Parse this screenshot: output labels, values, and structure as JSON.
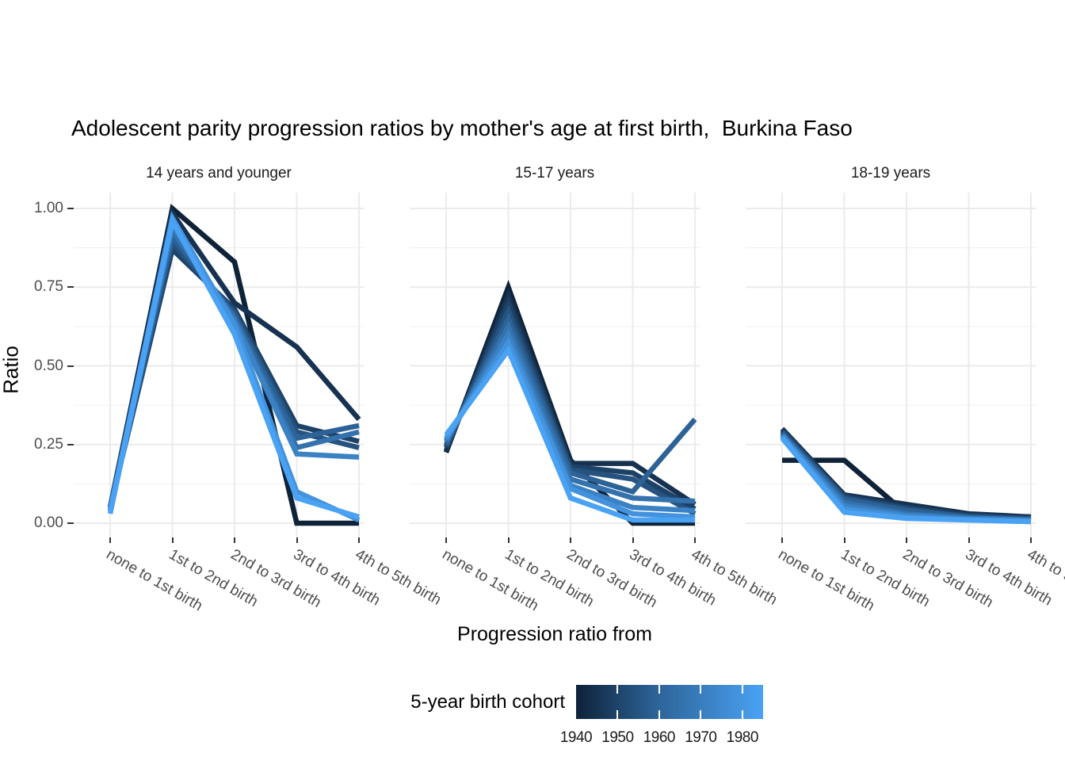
{
  "title": "Adolescent parity progression ratios by mother's age at first birth,  Burkina Faso",
  "y_axis": {
    "label": "Ratio",
    "tick_labels": [
      "1.00",
      "0.75",
      "0.50",
      "0.25",
      "0.00"
    ],
    "tick_values": [
      1.0,
      0.75,
      0.5,
      0.25,
      0.0
    ],
    "minor_values": [
      0.875,
      0.625,
      0.375,
      0.125
    ]
  },
  "x_axis": {
    "label": "Progression ratio from",
    "categories": [
      "none to 1st birth",
      "1st to 2nd birth",
      "2nd to 3rd birth",
      "3rd to 4th birth",
      "4th to 5th birth"
    ]
  },
  "legend": {
    "title": "5-year birth cohort",
    "tick_labels": [
      "1940",
      "1950",
      "1960",
      "1970",
      "1980"
    ],
    "tick_years": [
      1940,
      1950,
      1960,
      1970,
      1980
    ],
    "year_min": 1940,
    "year_max": 1985,
    "gradient_start": "#0E2238",
    "gradient_mid": "#2C6296",
    "gradient_end": "#4AA2F4"
  },
  "chart_data": {
    "type": "line",
    "title": "Adolescent parity progression ratios by mother's age at first birth,  Burkina Faso",
    "xlabel": "Progression ratio from",
    "ylabel": "Ratio",
    "ylim": [
      0,
      1
    ],
    "grid": "on",
    "legend_position": "bottom",
    "categories": [
      "none to 1st birth",
      "1st to 2nd birth",
      "2nd to 3rd birth",
      "3rd to 4th birth",
      "4th to 5th birth"
    ],
    "cohorts": [
      "1940",
      "1945",
      "1950",
      "1955",
      "1960",
      "1965",
      "1970",
      "1975",
      "1980"
    ],
    "colors": [
      "#0E2238",
      "#163250",
      "#1D4267",
      "#25527F",
      "#2C6296",
      "#3472AE",
      "#3B82C5",
      "#4392DD",
      "#4AA2F4"
    ],
    "facets": [
      {
        "label": "14 years and younger",
        "series": [
          {
            "name": "1940",
            "color": "#0E2238",
            "values": [
              0.05,
              1.0,
              0.83,
              0.0,
              0.0
            ]
          },
          {
            "name": "1945",
            "color": "#163250",
            "values": [
              0.05,
              0.985,
              0.7,
              0.56,
              0.33
            ]
          },
          {
            "name": "1950",
            "color": "#1D4267",
            "values": [
              0.05,
              0.87,
              0.68,
              0.31,
              0.26
            ]
          },
          {
            "name": "1955",
            "color": "#25527F",
            "values": [
              0.05,
              0.89,
              0.67,
              0.29,
              0.24
            ]
          },
          {
            "name": "1960",
            "color": "#2C6296",
            "values": [
              0.05,
              0.91,
              0.66,
              0.27,
              0.31
            ]
          },
          {
            "name": "1965",
            "color": "#3472AE",
            "values": [
              0.04,
              0.93,
              0.65,
              0.24,
              0.29
            ]
          },
          {
            "name": "1970",
            "color": "#3B82C5",
            "values": [
              0.04,
              0.95,
              0.64,
              0.22,
              0.21
            ]
          },
          {
            "name": "1975",
            "color": "#4392DD",
            "values": [
              0.04,
              0.97,
              0.63,
              0.1,
              0.01
            ]
          },
          {
            "name": "1980",
            "color": "#4AA2F4",
            "values": [
              0.03,
              0.96,
              0.6,
              0.08,
              0.02
            ]
          }
        ]
      },
      {
        "label": "15-17 years",
        "series": [
          {
            "name": "1940",
            "color": "#0E2238",
            "values": [
              0.225,
              0.75,
              0.2,
              0.0,
              0.0
            ]
          },
          {
            "name": "1945",
            "color": "#163250",
            "values": [
              0.23,
              0.725,
              0.19,
              0.19,
              0.06
            ]
          },
          {
            "name": "1950",
            "color": "#1D4267",
            "values": [
              0.24,
              0.7,
              0.18,
              0.16,
              0.045
            ]
          },
          {
            "name": "1955",
            "color": "#25527F",
            "values": [
              0.245,
              0.675,
              0.17,
              0.14,
              0.03
            ]
          },
          {
            "name": "1960",
            "color": "#2C6296",
            "values": [
              0.25,
              0.65,
              0.16,
              0.1,
              0.33
            ]
          },
          {
            "name": "1965",
            "color": "#3472AE",
            "values": [
              0.26,
              0.625,
              0.14,
              0.08,
              0.07
            ]
          },
          {
            "name": "1970",
            "color": "#3B82C5",
            "values": [
              0.265,
              0.6,
              0.12,
              0.05,
              0.04
            ]
          },
          {
            "name": "1975",
            "color": "#4392DD",
            "values": [
              0.27,
              0.575,
              0.11,
              0.03,
              0.02
            ]
          },
          {
            "name": "1980",
            "color": "#4AA2F4",
            "values": [
              0.28,
              0.55,
              0.08,
              0.01,
              0.01
            ]
          }
        ]
      },
      {
        "label": "18-19 years",
        "series": [
          {
            "name": "1940",
            "color": "#0E2238",
            "values": [
              0.2,
              0.2,
              0.03,
              0.02,
              0.02
            ]
          },
          {
            "name": "1945",
            "color": "#163250",
            "values": [
              0.3,
              0.09,
              0.06,
              0.03,
              0.02
            ]
          },
          {
            "name": "1950",
            "color": "#1D4267",
            "values": [
              0.295,
              0.085,
              0.05,
              0.025,
              0.015
            ]
          },
          {
            "name": "1955",
            "color": "#25527F",
            "values": [
              0.29,
              0.08,
              0.045,
              0.02,
              0.015
            ]
          },
          {
            "name": "1960",
            "color": "#2C6296",
            "values": [
              0.285,
              0.075,
              0.04,
              0.02,
              0.01
            ]
          },
          {
            "name": "1965",
            "color": "#3472AE",
            "values": [
              0.28,
              0.065,
              0.03,
              0.015,
              0.01
            ]
          },
          {
            "name": "1970",
            "color": "#3B82C5",
            "values": [
              0.28,
              0.055,
              0.025,
              0.015,
              0.01
            ]
          },
          {
            "name": "1975",
            "color": "#4392DD",
            "values": [
              0.275,
              0.045,
              0.02,
              0.01,
              0.005
            ]
          },
          {
            "name": "1980",
            "color": "#4AA2F4",
            "values": [
              0.27,
              0.035,
              0.015,
              0.01,
              0.005
            ]
          }
        ]
      }
    ]
  }
}
